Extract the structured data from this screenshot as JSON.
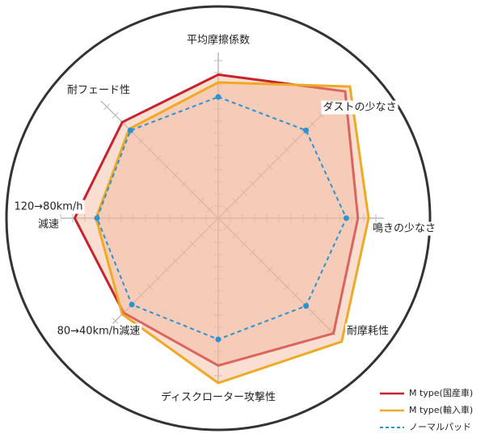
{
  "chart_data": {
    "type": "radar",
    "categories": [
      "平均摩擦係数",
      "ダストの少なさ",
      "鳴きの少なさ",
      "耐摩耗性",
      "ディスクローター攻撃性",
      "80→40km/h減速",
      [
        "120→80km/h",
        "減速"
      ],
      "耐フェード性"
    ],
    "rlim": [
      0,
      10
    ],
    "series": [
      {
        "name": "M type(国産車)",
        "color": "#c8232c",
        "values": [
          7.4,
          9.25,
          7.2,
          8.4,
          7.6,
          6.9,
          7.4,
          7.0
        ]
      },
      {
        "name": "M type(輸入車)",
        "color": "#eeaa22",
        "values": [
          7.0,
          9.6,
          7.75,
          9.0,
          8.5,
          7.0,
          6.3,
          6.5
        ]
      },
      {
        "name": "ノーマルパッド",
        "color": "#2a93d5",
        "dashed": true,
        "values": [
          6.25,
          6.4,
          6.6,
          6.4,
          6.25,
          6.3,
          6.25,
          6.4
        ]
      }
    ]
  }
}
